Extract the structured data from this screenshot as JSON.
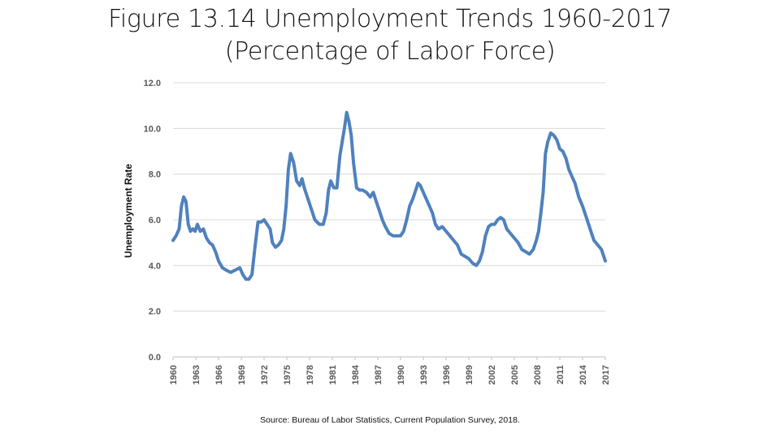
{
  "title_line1": "Figure 13.14 Unemployment Trends 1960-2017",
  "title_line2": "(Percentage of Labor Force)",
  "source": "Source: Bureau of Labor Statistics, Current Population Survey, 2018.",
  "chart_data": {
    "type": "line",
    "ylabel": "Unemployment Rate",
    "xlabel": "",
    "ylim": [
      0,
      12
    ],
    "xlim": [
      1960,
      2017
    ],
    "grid": true,
    "y_ticks": [
      "0.0",
      "2.0",
      "4.0",
      "6.0",
      "8.0",
      "10.0",
      "12.0"
    ],
    "x_ticks": [
      "1960",
      "1963",
      "1966",
      "1969",
      "1972",
      "1975",
      "1978",
      "1981",
      "1984",
      "1987",
      "1990",
      "1993",
      "1996",
      "1999",
      "2002",
      "2005",
      "2008",
      "2011",
      "2014",
      "2017"
    ],
    "line_color": "#4f81bd",
    "series": [
      {
        "x": [
          1960,
          1960.4,
          1960.8,
          1961.1,
          1961.4,
          1961.7,
          1962,
          1962.3,
          1962.6,
          1962.9,
          1963.2,
          1963.6,
          1964,
          1964.4,
          1964.8,
          1965.2,
          1965.6,
          1966,
          1966.5,
          1967,
          1967.6,
          1968.2,
          1968.8,
          1969.2,
          1969.6,
          1970,
          1970.4,
          1970.8,
          1971.2,
          1971.6,
          1972,
          1972.4,
          1972.8,
          1973.1,
          1973.5,
          1973.9,
          1974.3,
          1974.6,
          1974.9,
          1975.2,
          1975.5,
          1975.9,
          1976.3,
          1976.7,
          1977,
          1977.3,
          1977.7,
          1978.2,
          1978.7,
          1979.3,
          1979.8,
          1980.2,
          1980.5,
          1980.8,
          1981.2,
          1981.6,
          1982,
          1982.3,
          1982.6,
          1982.9,
          1983.2,
          1983.5,
          1983.8,
          1984.2,
          1984.6,
          1985,
          1985.5,
          1986,
          1986.4,
          1986.8,
          1987.2,
          1987.6,
          1988,
          1988.5,
          1989,
          1989.5,
          1990,
          1990.4,
          1990.8,
          1991.2,
          1991.6,
          1992,
          1992.3,
          1992.6,
          1993,
          1993.4,
          1993.8,
          1994.2,
          1994.6,
          1995,
          1995.5,
          1996,
          1996.5,
          1997,
          1997.5,
          1998,
          1998.5,
          1999,
          1999.5,
          2000,
          2000.4,
          2000.8,
          2001.2,
          2001.6,
          2002,
          2002.4,
          2002.8,
          2003.2,
          2003.6,
          2004,
          2004.5,
          2005,
          2005.5,
          2006,
          2006.5,
          2007,
          2007.5,
          2007.9,
          2008.2,
          2008.5,
          2008.8,
          2009.1,
          2009.4,
          2009.8,
          2010.2,
          2010.6,
          2011,
          2011.4,
          2011.8,
          2012.2,
          2012.6,
          2013,
          2013.5,
          2014,
          2014.5,
          2015,
          2015.5,
          2016,
          2016.5,
          2016.8,
          2017
        ],
        "values": [
          5.1,
          5.3,
          5.6,
          6.6,
          7.0,
          6.8,
          5.8,
          5.5,
          5.6,
          5.5,
          5.8,
          5.5,
          5.6,
          5.2,
          5.0,
          4.9,
          4.6,
          4.2,
          3.9,
          3.8,
          3.7,
          3.8,
          3.9,
          3.6,
          3.4,
          3.4,
          3.6,
          4.8,
          5.9,
          5.9,
          6.0,
          5.8,
          5.6,
          5.0,
          4.8,
          4.9,
          5.1,
          5.6,
          6.6,
          8.2,
          8.9,
          8.5,
          7.7,
          7.5,
          7.8,
          7.4,
          7.0,
          6.5,
          6.0,
          5.8,
          5.8,
          6.3,
          7.3,
          7.7,
          7.4,
          7.4,
          8.8,
          9.4,
          10.0,
          10.7,
          10.3,
          9.7,
          8.5,
          7.4,
          7.3,
          7.3,
          7.2,
          7.0,
          7.2,
          6.8,
          6.4,
          6.0,
          5.7,
          5.4,
          5.3,
          5.3,
          5.3,
          5.5,
          6.0,
          6.6,
          6.9,
          7.3,
          7.6,
          7.5,
          7.2,
          6.9,
          6.6,
          6.3,
          5.8,
          5.6,
          5.7,
          5.5,
          5.3,
          5.1,
          4.9,
          4.5,
          4.4,
          4.3,
          4.1,
          4.0,
          4.2,
          4.6,
          5.3,
          5.7,
          5.8,
          5.8,
          6.0,
          6.1,
          6.0,
          5.6,
          5.4,
          5.2,
          5.0,
          4.7,
          4.6,
          4.5,
          4.7,
          5.1,
          5.5,
          6.3,
          7.2,
          8.9,
          9.4,
          9.8,
          9.7,
          9.5,
          9.1,
          9.0,
          8.7,
          8.2,
          7.9,
          7.6,
          7.0,
          6.6,
          6.1,
          5.6,
          5.1,
          4.9,
          4.7,
          4.4,
          4.2
        ]
      }
    ]
  }
}
